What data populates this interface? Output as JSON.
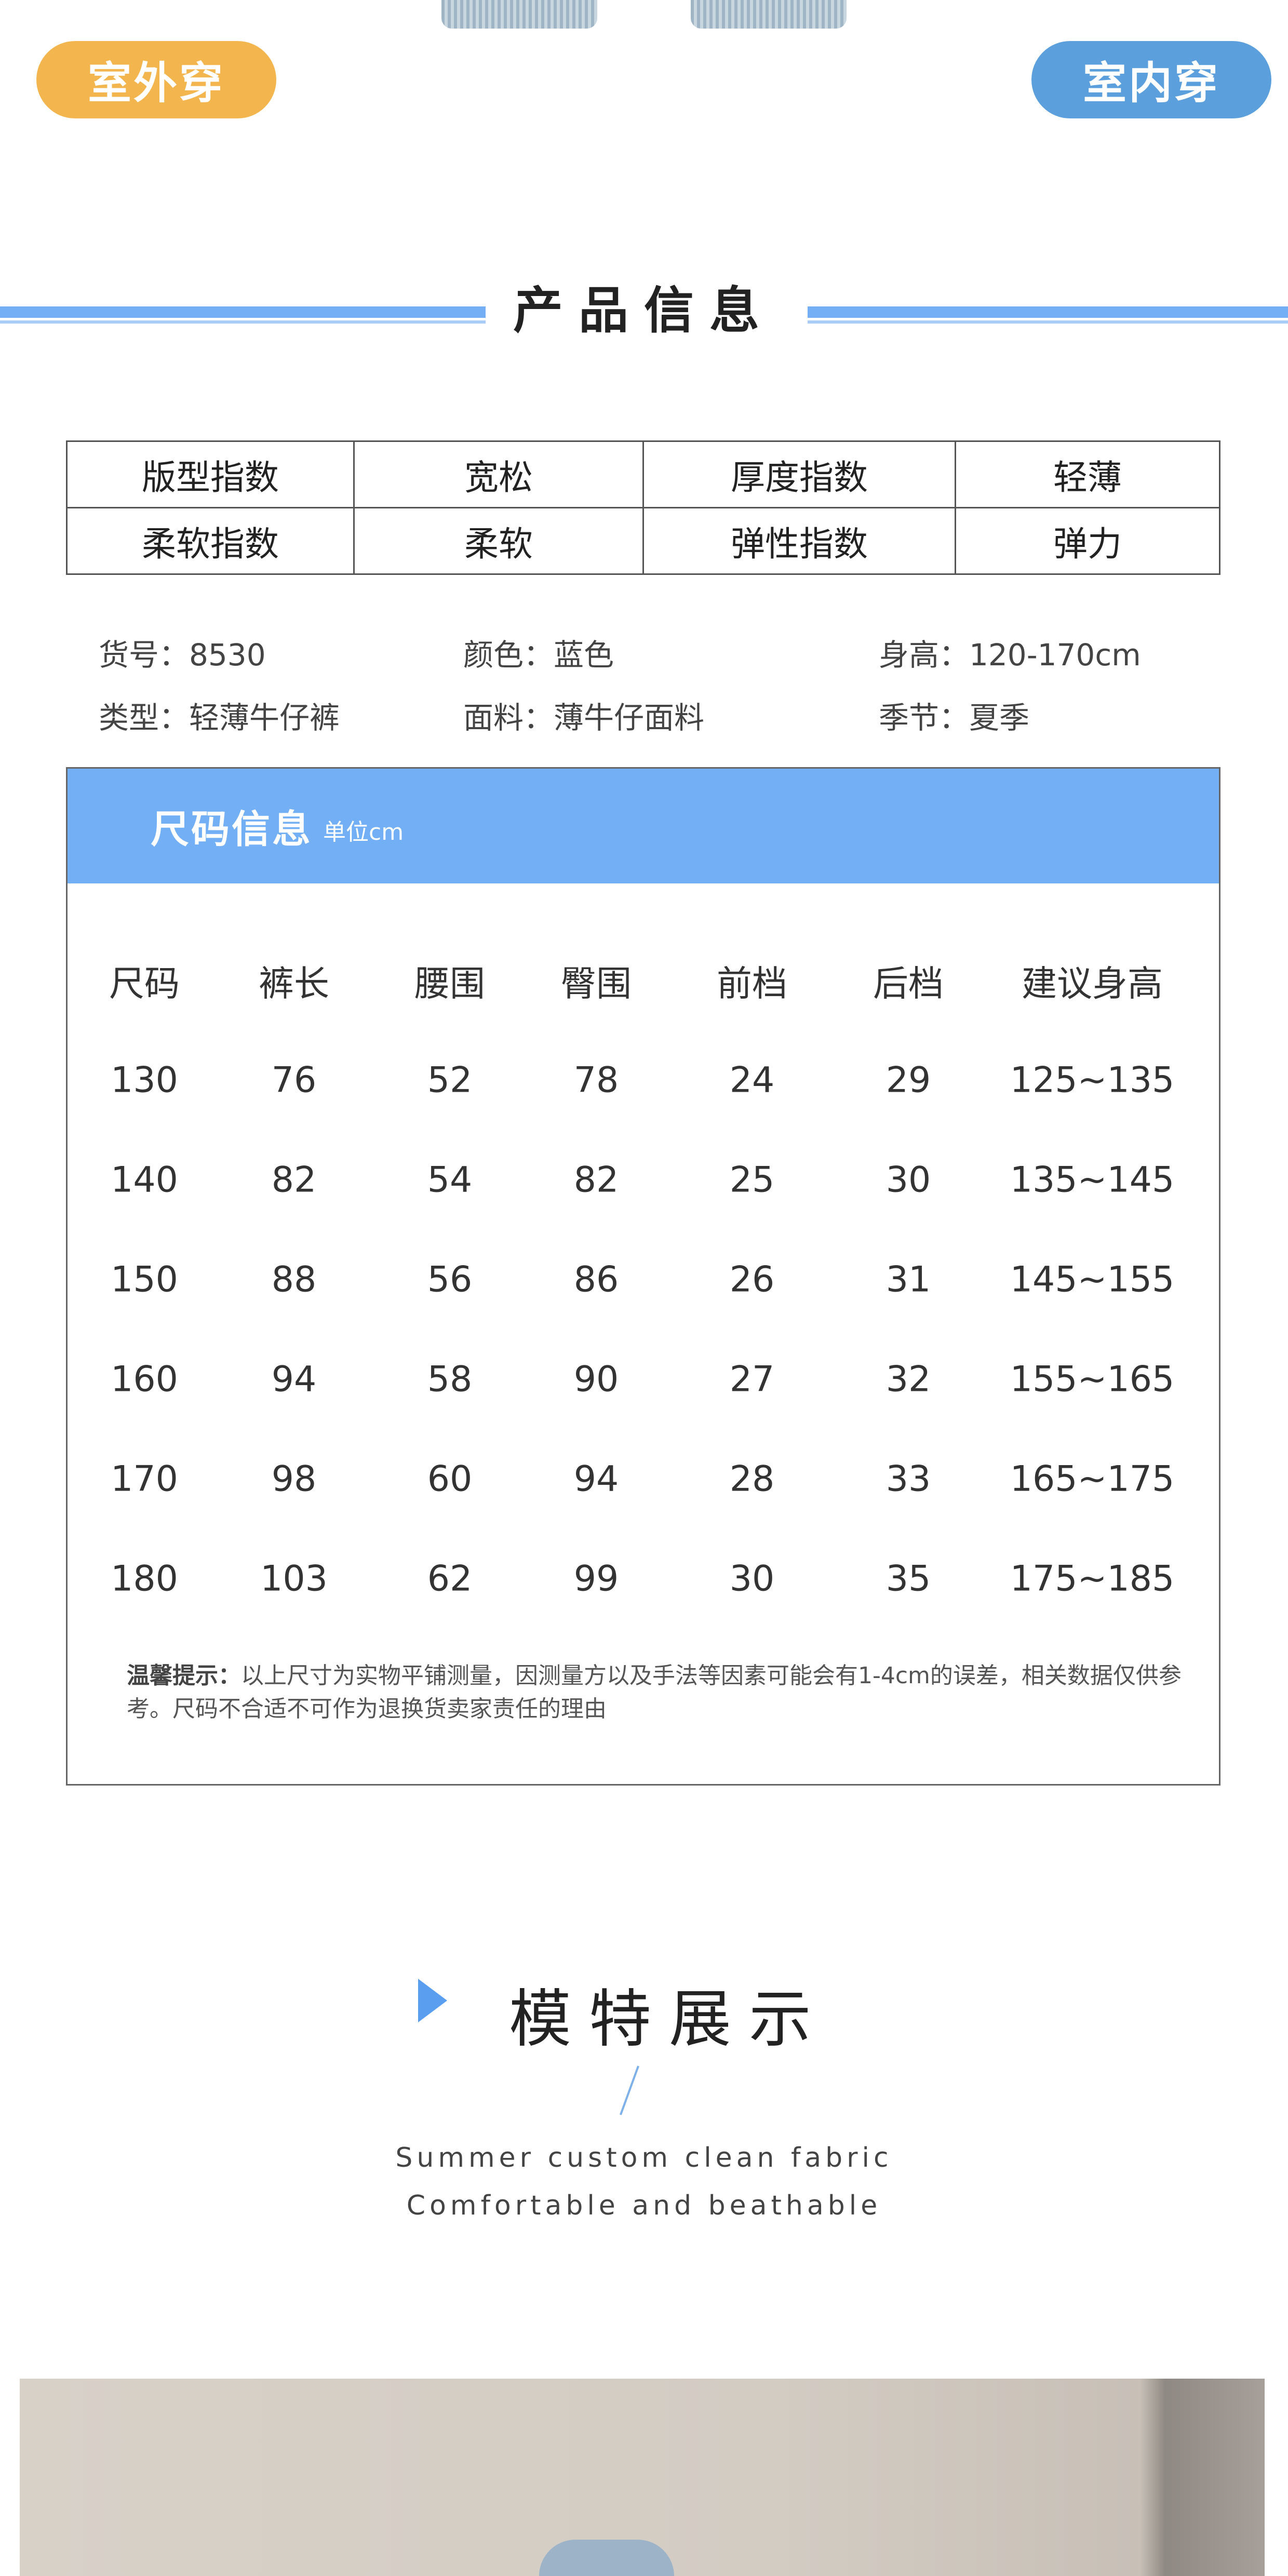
{
  "badges": {
    "outdoor": "室外穿",
    "indoor": "室内穿",
    "outdoor_color": "#f3b64f",
    "indoor_color": "#5b9fdc"
  },
  "product_info": {
    "title": "产品信息",
    "spec_rows": [
      [
        "版型指数",
        "宽松",
        "厚度指数",
        "轻薄"
      ],
      [
        "柔软指数",
        "柔软",
        "弹性指数",
        "弹力"
      ]
    ],
    "details": [
      [
        "货号：8530",
        "颜色：蓝色",
        "身高：120-170cm"
      ],
      [
        "类型：轻薄牛仔裤",
        "面料：薄牛仔面料",
        "季节：夏季"
      ]
    ]
  },
  "size_info": {
    "title": "尺码信息",
    "unit": "单位cm",
    "headers": [
      "尺码",
      "裤长",
      "腰围",
      "臀围",
      "前档",
      "后档",
      "建议身高"
    ],
    "rows": [
      [
        "130",
        "76",
        "52",
        "78",
        "24",
        "29",
        "125~135"
      ],
      [
        "140",
        "82",
        "54",
        "82",
        "25",
        "30",
        "135~145"
      ],
      [
        "150",
        "88",
        "56",
        "86",
        "26",
        "31",
        "145~155"
      ],
      [
        "160",
        "94",
        "58",
        "90",
        "27",
        "32",
        "155~165"
      ],
      [
        "170",
        "98",
        "60",
        "94",
        "28",
        "33",
        "165~175"
      ],
      [
        "180",
        "103",
        "62",
        "99",
        "30",
        "35",
        "175~185"
      ]
    ],
    "notice_label": "温馨提示：",
    "notice": "以上尺寸为实物平铺测量，因测量方以及手法等因素可能会有1-4cm的误差，相关数据仅供参考。尺码不合适不可作为退换货卖家责任的理由"
  },
  "model": {
    "title": "模特展示",
    "line1": "Summer custom clean fabric",
    "line2": "Comfortable and beathable"
  },
  "accent_color": "#72aff5"
}
